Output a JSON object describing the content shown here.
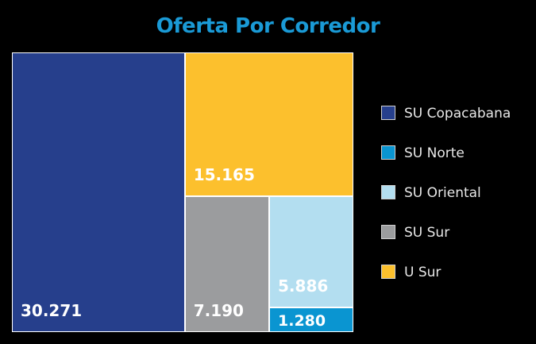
{
  "chart_data": {
    "type": "treemap",
    "title": "Oferta Por Corredor",
    "title_color": "#1a9ad6",
    "legend_position": "right",
    "series": [
      {
        "name": "SU Copacabana",
        "value": 30271,
        "label": "30.271",
        "color": "#263f8c"
      },
      {
        "name": "SU Norte",
        "value": 1280,
        "label": "1.280",
        "color": "#0a95d1"
      },
      {
        "name": "SU Oriental",
        "value": 5886,
        "label": "5.886",
        "color": "#b3def0"
      },
      {
        "name": "SU Sur",
        "value": 7190,
        "label": "7.190",
        "color": "#9b9c9e"
      },
      {
        "name": "U Sur",
        "value": 15165,
        "label": "15.165",
        "color": "#fcc02d"
      }
    ]
  }
}
